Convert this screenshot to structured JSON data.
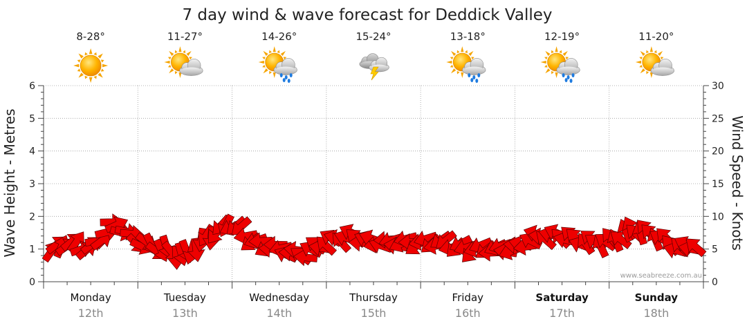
{
  "chart_data": {
    "type": "line",
    "title": "7 day wind & wave forecast for Deddick Valley",
    "ylabel_left": "Wave Height - Metres",
    "ylabel_right": "Wind Speed - Knots",
    "y_left_range": [
      0,
      6
    ],
    "y_left_ticks": [
      "0",
      "1",
      "2",
      "3",
      "4",
      "5",
      "6"
    ],
    "y_right_range": [
      0,
      30
    ],
    "y_right_ticks": [
      "0",
      "5",
      "10",
      "15",
      "20",
      "25",
      "30"
    ],
    "grid": true,
    "watermark": "www.seabreeze.com.au",
    "days": [
      {
        "day": "Monday",
        "date": "12th",
        "bold": false,
        "temp": "8-28°",
        "icon": "sunny-icon"
      },
      {
        "day": "Tuesday",
        "date": "13th",
        "bold": false,
        "temp": "11-27°",
        "icon": "partly-cloudy-icon"
      },
      {
        "day": "Wednesday",
        "date": "14th",
        "bold": false,
        "temp": "14-26°",
        "icon": "sun-showers-icon"
      },
      {
        "day": "Thursday",
        "date": "15th",
        "bold": false,
        "temp": "15-24°",
        "icon": "thunderstorm-icon"
      },
      {
        "day": "Friday",
        "date": "16th",
        "bold": false,
        "temp": "13-18°",
        "icon": "sun-rain-icon"
      },
      {
        "day": "Saturday",
        "date": "17th",
        "bold": true,
        "temp": "12-19°",
        "icon": "sun-rain-icon"
      },
      {
        "day": "Sunday",
        "date": "18th",
        "bold": true,
        "temp": "11-20°",
        "icon": "partly-cloudy-icon"
      }
    ],
    "wind_series": {
      "name": "Wind Speed",
      "x_unit": "hours from Monday 00:00",
      "x": [
        0,
        6,
        12,
        18,
        24,
        30,
        36,
        42,
        48,
        54,
        60,
        66,
        72,
        78,
        84,
        90,
        96,
        102,
        108,
        114,
        120,
        126,
        132,
        138,
        144,
        150,
        156,
        162,
        168
      ],
      "values": [
        4,
        6,
        5,
        9,
        6,
        5,
        4,
        7,
        9,
        6,
        5,
        4,
        6,
        7,
        6,
        6,
        6,
        6,
        5,
        5,
        5,
        7,
        7,
        6,
        6,
        8,
        7,
        5,
        6
      ],
      "directions_deg": [
        30,
        45,
        60,
        80,
        120,
        150,
        170,
        200,
        230,
        250,
        270,
        290,
        300,
        300,
        280,
        260,
        250,
        240,
        240,
        250,
        270,
        290,
        300,
        310,
        320,
        330,
        320,
        300,
        290
      ]
    }
  }
}
